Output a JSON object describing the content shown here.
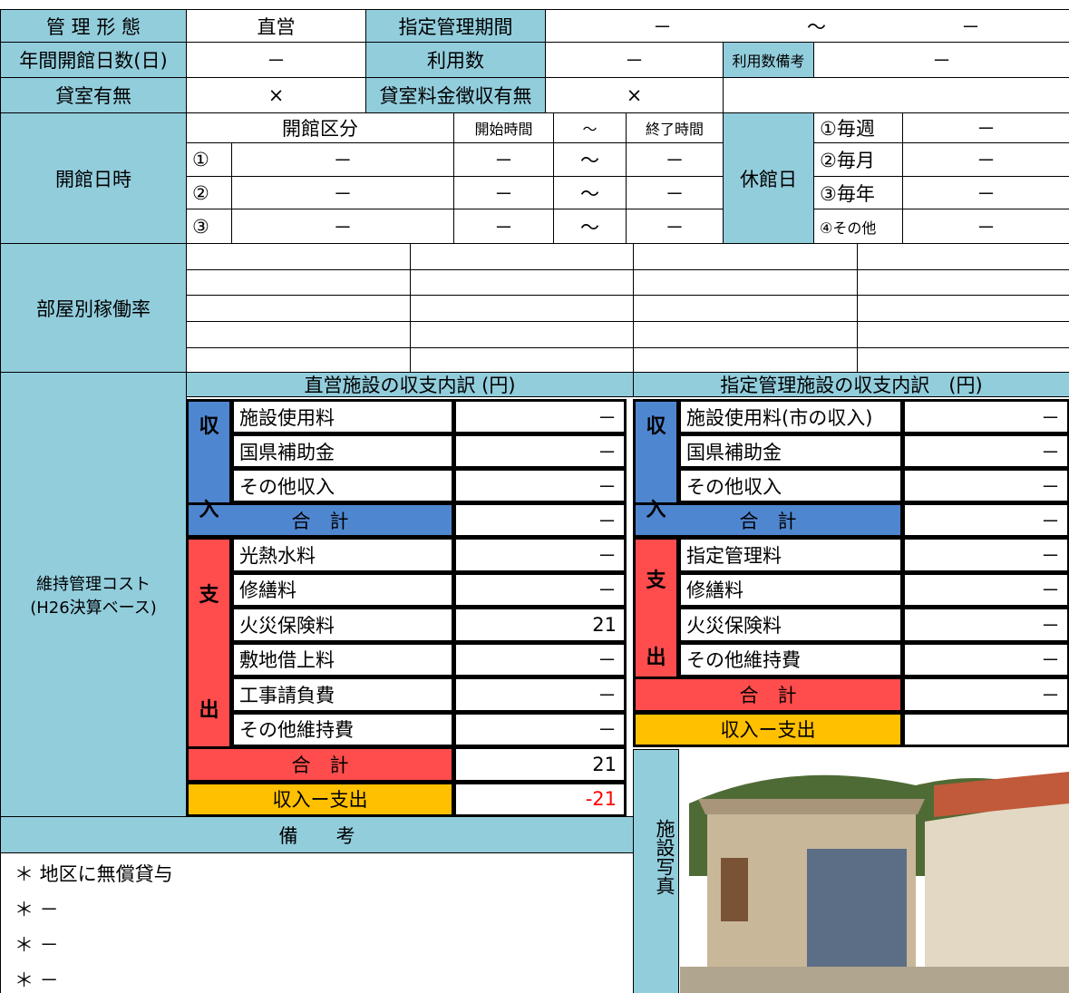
{
  "basic": {
    "management_type_label": "管 理 形 態",
    "management_type": "直営",
    "designated_period_label": "指定管理期間",
    "period_start": "－",
    "period_sep": "～",
    "period_end": "－",
    "open_days_label": "年間開館日数(日)",
    "open_days": "－",
    "usage_label": "利用数",
    "usage": "－",
    "usage_note_label": "利用数備考",
    "usage_note": "－",
    "rental_label": "貸室有無",
    "rental": "×",
    "rental_fee_label": "貸室料金徴収有無",
    "rental_fee": "×"
  },
  "hours": {
    "label": "開館日時",
    "headers": [
      "開館区分",
      "開始時間",
      "～",
      "終了時間"
    ],
    "rows": [
      [
        "①",
        "－",
        "－",
        "～",
        "－"
      ],
      [
        "②",
        "－",
        "－",
        "～",
        "－"
      ],
      [
        "③",
        "－",
        "－",
        "～",
        "－"
      ]
    ]
  },
  "closed": {
    "label": "休館日",
    "rows": [
      [
        "①毎週",
        "－"
      ],
      [
        "②毎月",
        "－"
      ],
      [
        "③毎年",
        "－"
      ],
      [
        "④その他",
        "－"
      ]
    ]
  },
  "room_rate": {
    "label": "部屋別稼働率"
  },
  "cost": {
    "label": [
      "維持管理コスト",
      "(H26決算ベース)"
    ],
    "direct": {
      "title": "直営施設の収支内訳 (円)",
      "income_label": [
        "収",
        "入"
      ],
      "income": [
        [
          "施設使用料",
          "－"
        ],
        [
          "国県補助金",
          "－"
        ],
        [
          "その他収入",
          "－"
        ]
      ],
      "income_total": [
        "合　計",
        "－"
      ],
      "expense_label": [
        "支",
        "出"
      ],
      "expense": [
        [
          "光熱水料",
          "－"
        ],
        [
          "修繕料",
          "－"
        ],
        [
          "火災保険料",
          21
        ],
        [
          "敷地借上料",
          "－"
        ],
        [
          "工事請負費",
          "－"
        ],
        [
          "その他維持費",
          "－"
        ]
      ],
      "expense_total": [
        "合　計",
        21
      ],
      "balance": [
        "収入ー支出",
        -21
      ]
    },
    "designated": {
      "title": "指定管理施設の収支内訳　(円)",
      "income_label": [
        "収",
        "入"
      ],
      "income": [
        [
          "施設使用料(市の収入)",
          "－"
        ],
        [
          "国県補助金",
          "－"
        ],
        [
          "その他収入",
          "－"
        ]
      ],
      "income_total": [
        "合　計",
        "－"
      ],
      "expense_label": [
        "支",
        "出"
      ],
      "expense": [
        [
          "指定管理料",
          "－"
        ],
        [
          "修繕料",
          "－"
        ],
        [
          "火災保険料",
          "－"
        ],
        [
          "その他維持費",
          "－"
        ]
      ],
      "expense_total": [
        "合　計",
        "－"
      ],
      "balance": [
        "収入ー支出"
      ]
    }
  },
  "remarks": {
    "title": "備　　考",
    "items": [
      "＊ 地区に無償貸与",
      "＊ －",
      "＊ －",
      "＊ －"
    ]
  },
  "photo_label": "施設写真"
}
